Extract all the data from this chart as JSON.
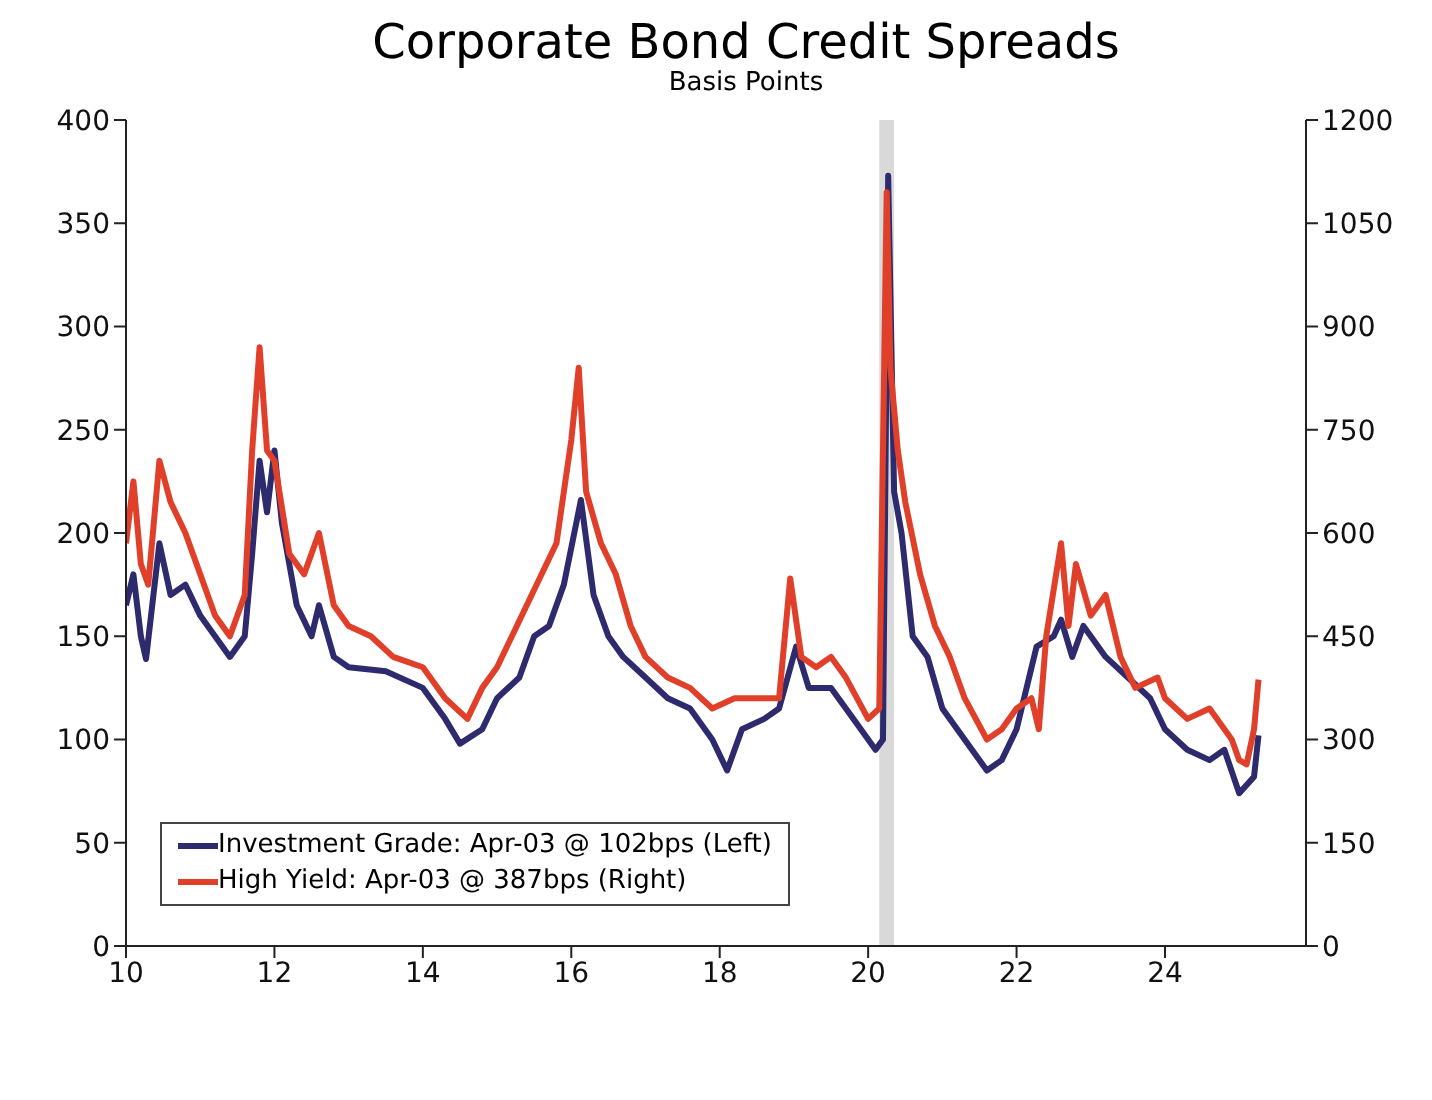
{
  "chart_data": {
    "type": "line",
    "title": "Corporate Bond Credit Spreads",
    "subtitle": "Basis Points",
    "xlim": [
      10,
      25.9
    ],
    "xticks": [
      10,
      12,
      14,
      16,
      18,
      20,
      22,
      24
    ],
    "ylim": [
      0,
      400
    ],
    "yticks": [
      0,
      50,
      100,
      150,
      200,
      250,
      300,
      350,
      400
    ],
    "y2lim": [
      0,
      1200
    ],
    "y2ticks": [
      0,
      150,
      300,
      450,
      600,
      750,
      900,
      1050,
      1200
    ],
    "legend": "bottom left",
    "marker": "none",
    "line_style": "solid",
    "bands": [
      {
        "axis": "x",
        "from": 20.15,
        "to": 20.35,
        "color": "#d9d9d9"
      }
    ],
    "series": [
      {
        "name": "Investment Grade: Apr-03 @ 102bps (Left)",
        "color": "#2e2a6e",
        "x": [
          10.0,
          10.1,
          10.2,
          10.27,
          10.45,
          10.6,
          10.8,
          11.0,
          11.2,
          11.4,
          11.6,
          11.7,
          11.8,
          11.9,
          12.0,
          12.1,
          12.3,
          12.5,
          12.6,
          12.8,
          13.0,
          13.5,
          14.0,
          14.3,
          14.5,
          14.8,
          15.0,
          15.3,
          15.5,
          15.7,
          15.9,
          16.13,
          16.3,
          16.5,
          16.7,
          17.0,
          17.3,
          17.6,
          17.9,
          18.1,
          18.3,
          18.6,
          18.8,
          19.03,
          19.2,
          19.5,
          19.8,
          20.1,
          20.2,
          20.27,
          20.35,
          20.45,
          20.6,
          20.8,
          21.0,
          21.3,
          21.6,
          21.8,
          22.0,
          22.27,
          22.5,
          22.6,
          22.75,
          22.9,
          23.0,
          23.2,
          23.5,
          23.8,
          24.0,
          24.3,
          24.6,
          24.8,
          25.0,
          25.2,
          25.26
        ],
        "values": [
          165,
          180,
          150,
          139,
          195,
          170,
          175,
          160,
          150,
          140,
          150,
          190,
          235,
          210,
          240,
          205,
          165,
          150,
          165,
          140,
          135,
          133,
          125,
          110,
          98,
          105,
          120,
          130,
          150,
          155,
          175,
          216,
          170,
          150,
          140,
          130,
          120,
          115,
          100,
          85,
          105,
          110,
          115,
          145,
          125,
          125,
          110,
          95,
          100,
          373,
          220,
          200,
          150,
          140,
          115,
          100,
          85,
          90,
          105,
          145,
          150,
          158,
          140,
          155,
          150,
          140,
          130,
          120,
          105,
          95,
          90,
          95,
          74,
          82,
          102
        ]
      },
      {
        "name": "High Yield: Apr-03 @ 387bps (Right)",
        "color": "#e0402a",
        "axis": "y2",
        "x": [
          10.0,
          10.1,
          10.2,
          10.3,
          10.45,
          10.6,
          10.8,
          11.0,
          11.2,
          11.4,
          11.6,
          11.7,
          11.8,
          11.9,
          12.0,
          12.2,
          12.4,
          12.6,
          12.8,
          13.0,
          13.3,
          13.6,
          14.0,
          14.3,
          14.6,
          14.8,
          15.0,
          15.2,
          15.4,
          15.6,
          15.8,
          16.0,
          16.1,
          16.2,
          16.4,
          16.6,
          16.8,
          17.0,
          17.3,
          17.6,
          17.9,
          18.2,
          18.5,
          18.8,
          18.95,
          19.1,
          19.3,
          19.5,
          19.7,
          20.0,
          20.15,
          20.25,
          20.3,
          20.4,
          20.5,
          20.7,
          20.9,
          21.1,
          21.3,
          21.6,
          21.8,
          22.0,
          22.2,
          22.3,
          22.4,
          22.6,
          22.7,
          22.8,
          23.0,
          23.2,
          23.4,
          23.6,
          23.9,
          24.0,
          24.3,
          24.6,
          24.9,
          25.0,
          25.1,
          25.2,
          25.26
        ],
        "values": [
          585,
          675,
          555,
          525,
          705,
          645,
          600,
          540,
          480,
          450,
          510,
          720,
          870,
          720,
          705,
          570,
          540,
          600,
          495,
          465,
          450,
          420,
          405,
          360,
          330,
          375,
          405,
          450,
          495,
          540,
          585,
          735,
          840,
          660,
          585,
          540,
          465,
          420,
          390,
          375,
          345,
          360,
          360,
          360,
          534,
          420,
          405,
          420,
          390,
          330,
          345,
          1095,
          840,
          720,
          645,
          540,
          465,
          420,
          360,
          300,
          315,
          345,
          360,
          315,
          450,
          585,
          465,
          555,
          480,
          510,
          420,
          375,
          390,
          360,
          330,
          345,
          300,
          270,
          264,
          315,
          387
        ]
      }
    ]
  }
}
